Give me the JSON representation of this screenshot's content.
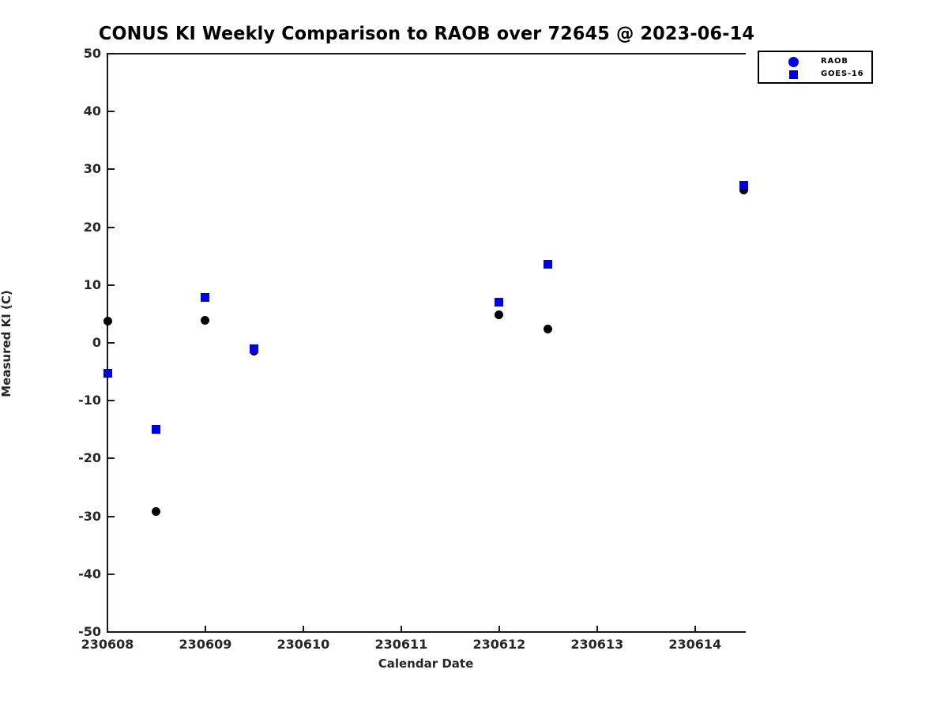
{
  "title": "CONUS KI Weekly Comparison to RAOB over 72645 @ 2023-06-14",
  "axes": {
    "xlabel": "Calendar Date",
    "ylabel": "Measured KI (C)"
  },
  "legend": {
    "items": [
      {
        "label": "RAOB",
        "marker": "circle",
        "color": "#0000e0"
      },
      {
        "label": "GOES-16",
        "marker": "square",
        "color": "#0000e0"
      }
    ]
  },
  "chart_data": {
    "type": "scatter",
    "title": "CONUS KI Weekly Comparison to RAOB over 72645 @ 2023-06-14",
    "xlabel": "Calendar Date",
    "ylabel": "Measured KI (C)",
    "xlim": [
      230608,
      230614.51
    ],
    "ylim": [
      -50,
      50
    ],
    "x_ticks": [
      230608,
      230609,
      230610,
      230611,
      230612,
      230613,
      230614
    ],
    "x_tick_labels": [
      "230608",
      "230609",
      "230610",
      "230611",
      "230612",
      "230613",
      "230614"
    ],
    "y_ticks": [
      -50,
      -40,
      -30,
      -20,
      -10,
      0,
      10,
      20,
      30,
      40,
      50
    ],
    "y_tick_labels": [
      "-50",
      "-40",
      "-30",
      "-20",
      "-10",
      "0",
      "10",
      "20",
      "30",
      "40",
      "50"
    ],
    "grid": false,
    "legend_position": "upper right, outside plot",
    "series": [
      {
        "name": "RAOB",
        "marker": "circle",
        "plot_color": "#000000",
        "legend_color": "#0000e0",
        "points": [
          [
            230608.0,
            3.8
          ],
          [
            230608.5,
            -29.2
          ],
          [
            230609.0,
            3.9
          ],
          [
            230609.5,
            -1.5
          ],
          [
            230612.0,
            4.8
          ],
          [
            230612.5,
            2.4
          ],
          [
            230614.5,
            26.5
          ]
        ]
      },
      {
        "name": "GOES-16",
        "marker": "square",
        "plot_color": "#0000e0",
        "legend_color": "#0000e0",
        "points": [
          [
            230608.0,
            -5.2
          ],
          [
            230608.5,
            -14.9
          ],
          [
            230609.0,
            7.9
          ],
          [
            230609.5,
            -1.0
          ],
          [
            230612.0,
            7.0
          ],
          [
            230612.5,
            13.6
          ],
          [
            230614.5,
            27.2
          ]
        ]
      }
    ]
  }
}
